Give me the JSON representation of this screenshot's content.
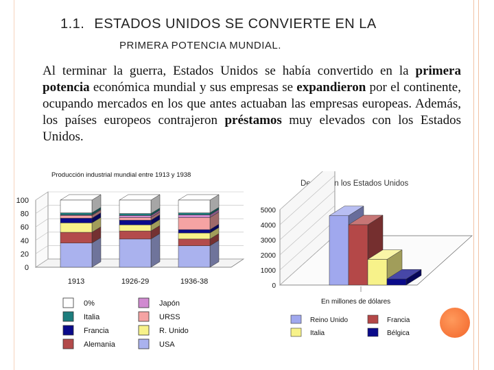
{
  "slide": {
    "title_number": "1.1.",
    "title_line1": "ESTADOS UNIDOS SE CONVIERTE EN LA",
    "title_line2": "PRIMERA POTENCIA MUNDIAL.",
    "paragraph": [
      {
        "t": "Al terminar la guerra, Estados Unidos se había convertido en la ",
        "b": false
      },
      {
        "t": "primera potencia",
        "b": true
      },
      {
        "t": " económica mundial y sus empresas se ",
        "b": false
      },
      {
        "t": "expandieron",
        "b": true
      },
      {
        "t": " por el continente, ocupando mercados en los que antes actuaban las empresas europeas. Además, los países europeos contrajeron ",
        "b": false
      },
      {
        "t": "préstamos",
        "b": true
      },
      {
        "t": " muy elevados con los Estados Unidos.",
        "b": false
      }
    ]
  },
  "chart_data": [
    {
      "type": "bar",
      "stacked": true,
      "title": "Producción industrial mundial entre 1913 y 1938",
      "categories": [
        "1913",
        "1926-29",
        "1936-38"
      ],
      "yticks": [
        "100",
        "80",
        "60",
        "40",
        "20",
        "0"
      ],
      "ylim": [
        0,
        100
      ],
      "series": [
        {
          "name": "USA",
          "color": "#aab2ee",
          "values": [
            36,
            42,
            32
          ]
        },
        {
          "name": "Alemania",
          "color": "#b34b4b",
          "values": [
            16,
            12,
            10
          ]
        },
        {
          "name": "R. Unido",
          "color": "#f7f28a",
          "values": [
            14,
            9,
            9
          ]
        },
        {
          "name": "Francia",
          "color": "#0a0a8a",
          "values": [
            7,
            7,
            5
          ]
        },
        {
          "name": "URSS",
          "color": "#f5a3a3",
          "values": [
            4,
            4,
            18
          ]
        },
        {
          "name": "Japón",
          "color": "#d08ad0",
          "values": [
            1,
            3,
            4
          ]
        },
        {
          "name": "Italia",
          "color": "#1d7d7d",
          "values": [
            3,
            3,
            3
          ]
        },
        {
          "name": "0%",
          "color": "#ffffff",
          "values": [
            19,
            20,
            19
          ]
        }
      ],
      "legend_columns": [
        [
          "0%",
          "Italia",
          "Francia",
          "Alemania"
        ],
        [
          "Japón",
          "URSS",
          "R. Unido",
          "USA"
        ]
      ]
    },
    {
      "type": "bar",
      "title": "Deuda con los Estados Unidos",
      "xlabel": "En millones de dólares",
      "yticks": [
        "5000",
        "4000",
        "3000",
        "2000",
        "1000",
        "0"
      ],
      "ylim": [
        0,
        5000
      ],
      "series": [
        {
          "name": "Reino Unido",
          "color": "#a0a8ee",
          "value": 4600
        },
        {
          "name": "Francia",
          "color": "#b44848",
          "value": 4000
        },
        {
          "name": "Italia",
          "color": "#f7f28a",
          "value": 1700
        },
        {
          "name": "Bélgica",
          "color": "#0a0a8a",
          "value": 400
        }
      ],
      "legend": [
        [
          "Reino Unido",
          "Francia"
        ],
        [
          "Italia",
          "Bélgica"
        ]
      ]
    }
  ]
}
